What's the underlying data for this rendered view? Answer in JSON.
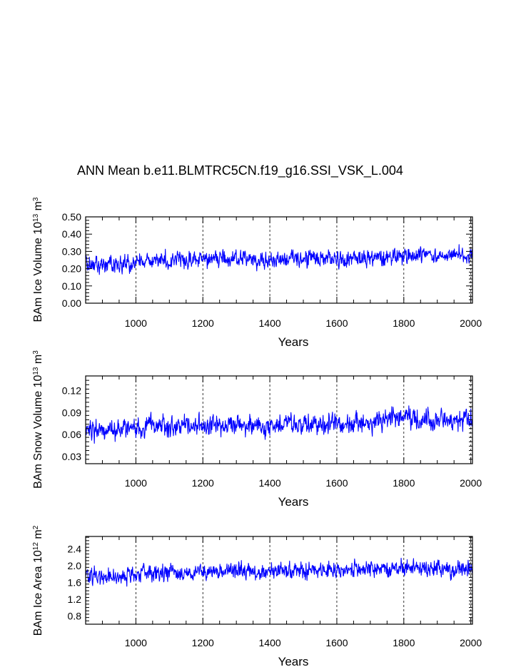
{
  "title": "ANN Mean b.e11.BLMTRC5CN.f19_g16.SSI_VSK_L.004",
  "colors": {
    "series": "#0000ff",
    "axes": "#000000",
    "grid": "#000000"
  },
  "chart_data": [
    {
      "type": "line",
      "xlabel": "Years",
      "ylabel": {
        "prefix": "BAm Ice Volume 10",
        "exp1": "13",
        "mid": " m",
        "exp2": "3"
      },
      "xlim": [
        850,
        2005
      ],
      "ylim": [
        0.0,
        0.5
      ],
      "xticks": [
        "1000",
        "1200",
        "1400",
        "1600",
        "1800",
        "2000"
      ],
      "xtick_values": [
        1000,
        1200,
        1400,
        1600,
        1800,
        2000
      ],
      "yticks": [
        "0.00",
        "0.10",
        "0.20",
        "0.30",
        "0.40",
        "0.50"
      ],
      "ytick_values": [
        0.0,
        0.1,
        0.2,
        0.3,
        0.4,
        0.5
      ],
      "grid": "vertical dashed at major x ticks",
      "series": [
        {
          "x_start": 850,
          "x_end": 2005,
          "anchors": [
            {
              "x": 850,
              "y": 0.24
            },
            {
              "x": 900,
              "y": 0.22
            },
            {
              "x": 1000,
              "y": 0.24
            },
            {
              "x": 1100,
              "y": 0.25
            },
            {
              "x": 1200,
              "y": 0.25
            },
            {
              "x": 1300,
              "y": 0.26
            },
            {
              "x": 1400,
              "y": 0.25
            },
            {
              "x": 1500,
              "y": 0.26
            },
            {
              "x": 1600,
              "y": 0.26
            },
            {
              "x": 1700,
              "y": 0.26
            },
            {
              "x": 1800,
              "y": 0.28
            },
            {
              "x": 1900,
              "y": 0.27
            },
            {
              "x": 2005,
              "y": 0.28
            }
          ],
          "spread": 0.065,
          "min": 0.1,
          "max": 0.44
        }
      ]
    },
    {
      "type": "line",
      "xlabel": "Years",
      "ylabel": {
        "prefix": "BAm Snow Volume 10",
        "exp1": "13",
        "mid": " m",
        "exp2": "3"
      },
      "xlim": [
        850,
        2005
      ],
      "ylim": [
        0.02,
        0.14
      ],
      "xticks": [
        "1000",
        "1200",
        "1400",
        "1600",
        "1800",
        "2000"
      ],
      "xtick_values": [
        1000,
        1200,
        1400,
        1600,
        1800,
        2000
      ],
      "yticks": [
        "0.03",
        "0.06",
        "0.09",
        "0.12"
      ],
      "ytick_values": [
        0.03,
        0.06,
        0.09,
        0.12
      ],
      "grid": "vertical dashed at major x ticks",
      "series": [
        {
          "x_start": 850,
          "x_end": 2005,
          "anchors": [
            {
              "x": 850,
              "y": 0.07
            },
            {
              "x": 900,
              "y": 0.063
            },
            {
              "x": 1000,
              "y": 0.068
            },
            {
              "x": 1100,
              "y": 0.072
            },
            {
              "x": 1200,
              "y": 0.072
            },
            {
              "x": 1300,
              "y": 0.074
            },
            {
              "x": 1400,
              "y": 0.073
            },
            {
              "x": 1500,
              "y": 0.075
            },
            {
              "x": 1600,
              "y": 0.076
            },
            {
              "x": 1700,
              "y": 0.077
            },
            {
              "x": 1800,
              "y": 0.083
            },
            {
              "x": 1900,
              "y": 0.079
            },
            {
              "x": 2005,
              "y": 0.082
            }
          ],
          "spread": 0.019,
          "min": 0.026,
          "max": 0.136
        }
      ]
    },
    {
      "type": "line",
      "xlabel": "Years",
      "ylabel": {
        "prefix": "BAm Ice Area 10",
        "exp1": "12",
        "mid": " m",
        "exp2": "2"
      },
      "xlim": [
        850,
        2005
      ],
      "ylim": [
        0.6,
        2.7
      ],
      "xticks": [
        "1000",
        "1200",
        "1400",
        "1600",
        "1800",
        "2000"
      ],
      "xtick_values": [
        1000,
        1200,
        1400,
        1600,
        1800,
        2000
      ],
      "yticks": [
        "0.8",
        "1.2",
        "1.6",
        "2.0",
        "2.4"
      ],
      "ytick_values": [
        0.8,
        1.2,
        1.6,
        2.0,
        2.4
      ],
      "grid": "vertical dashed at major x ticks",
      "series": [
        {
          "x_start": 850,
          "x_end": 2005,
          "anchors": [
            {
              "x": 850,
              "y": 1.8
            },
            {
              "x": 900,
              "y": 1.72
            },
            {
              "x": 1000,
              "y": 1.8
            },
            {
              "x": 1100,
              "y": 1.85
            },
            {
              "x": 1200,
              "y": 1.85
            },
            {
              "x": 1300,
              "y": 1.88
            },
            {
              "x": 1400,
              "y": 1.85
            },
            {
              "x": 1500,
              "y": 1.88
            },
            {
              "x": 1600,
              "y": 1.88
            },
            {
              "x": 1700,
              "y": 1.9
            },
            {
              "x": 1800,
              "y": 1.95
            },
            {
              "x": 1900,
              "y": 1.92
            },
            {
              "x": 2005,
              "y": 1.94
            }
          ],
          "spread": 0.27,
          "min": 0.88,
          "max": 2.45
        }
      ]
    }
  ]
}
